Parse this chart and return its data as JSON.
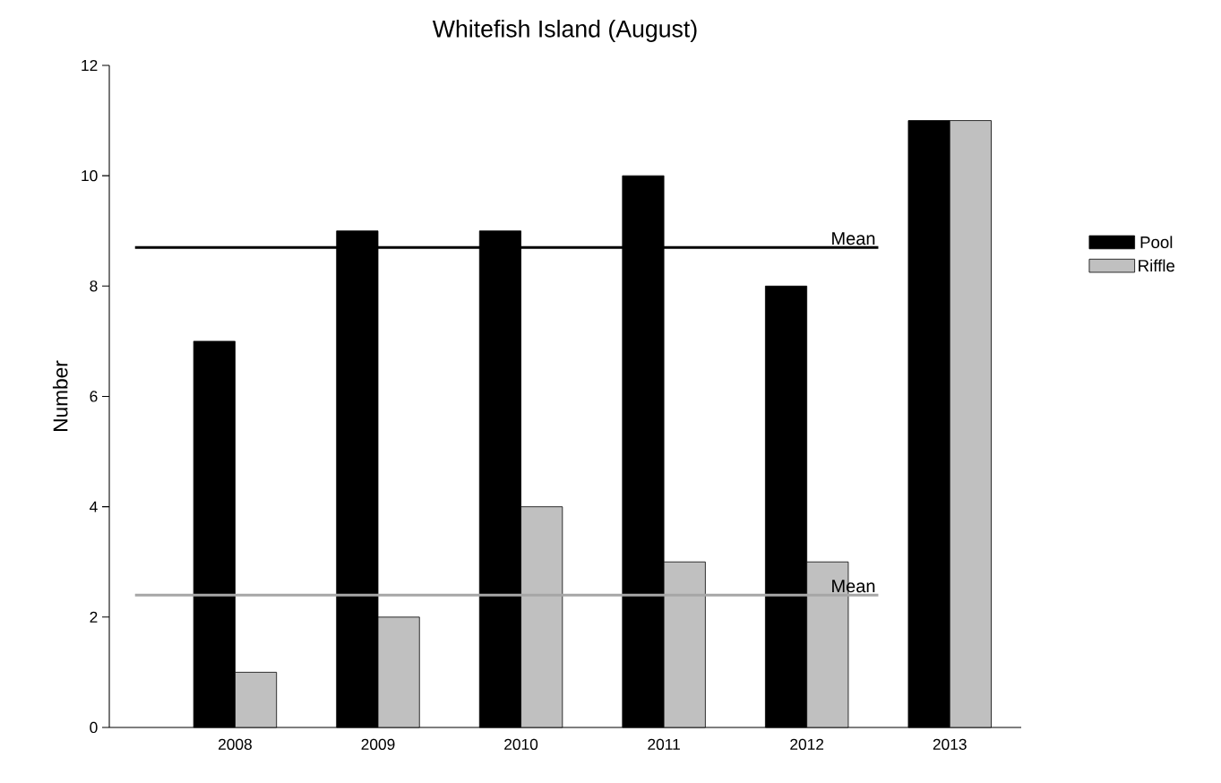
{
  "chart_data": {
    "type": "bar",
    "title": "Whitefish Island (August)",
    "ylabel": "Number",
    "categories": [
      "2008",
      "2009",
      "2010",
      "2011",
      "2012",
      "2013"
    ],
    "series": [
      {
        "name": "Pool",
        "color": "#000000",
        "values": [
          7,
          9,
          9,
          10,
          8,
          11
        ]
      },
      {
        "name": "Riffle",
        "color": "#c0c0c0",
        "values": [
          1,
          2,
          4,
          3,
          3,
          11
        ]
      }
    ],
    "ylim": [
      0,
      12
    ],
    "yticks": [
      0,
      2,
      4,
      6,
      8,
      10,
      12
    ],
    "ref_lines": [
      {
        "axis": "y",
        "value": 8.7,
        "label": "Mean",
        "color": "#000000"
      },
      {
        "axis": "y",
        "value": 2.4,
        "label": "Mean",
        "color": "#a6a6a6"
      }
    ],
    "legend": "right",
    "grid": false
  }
}
